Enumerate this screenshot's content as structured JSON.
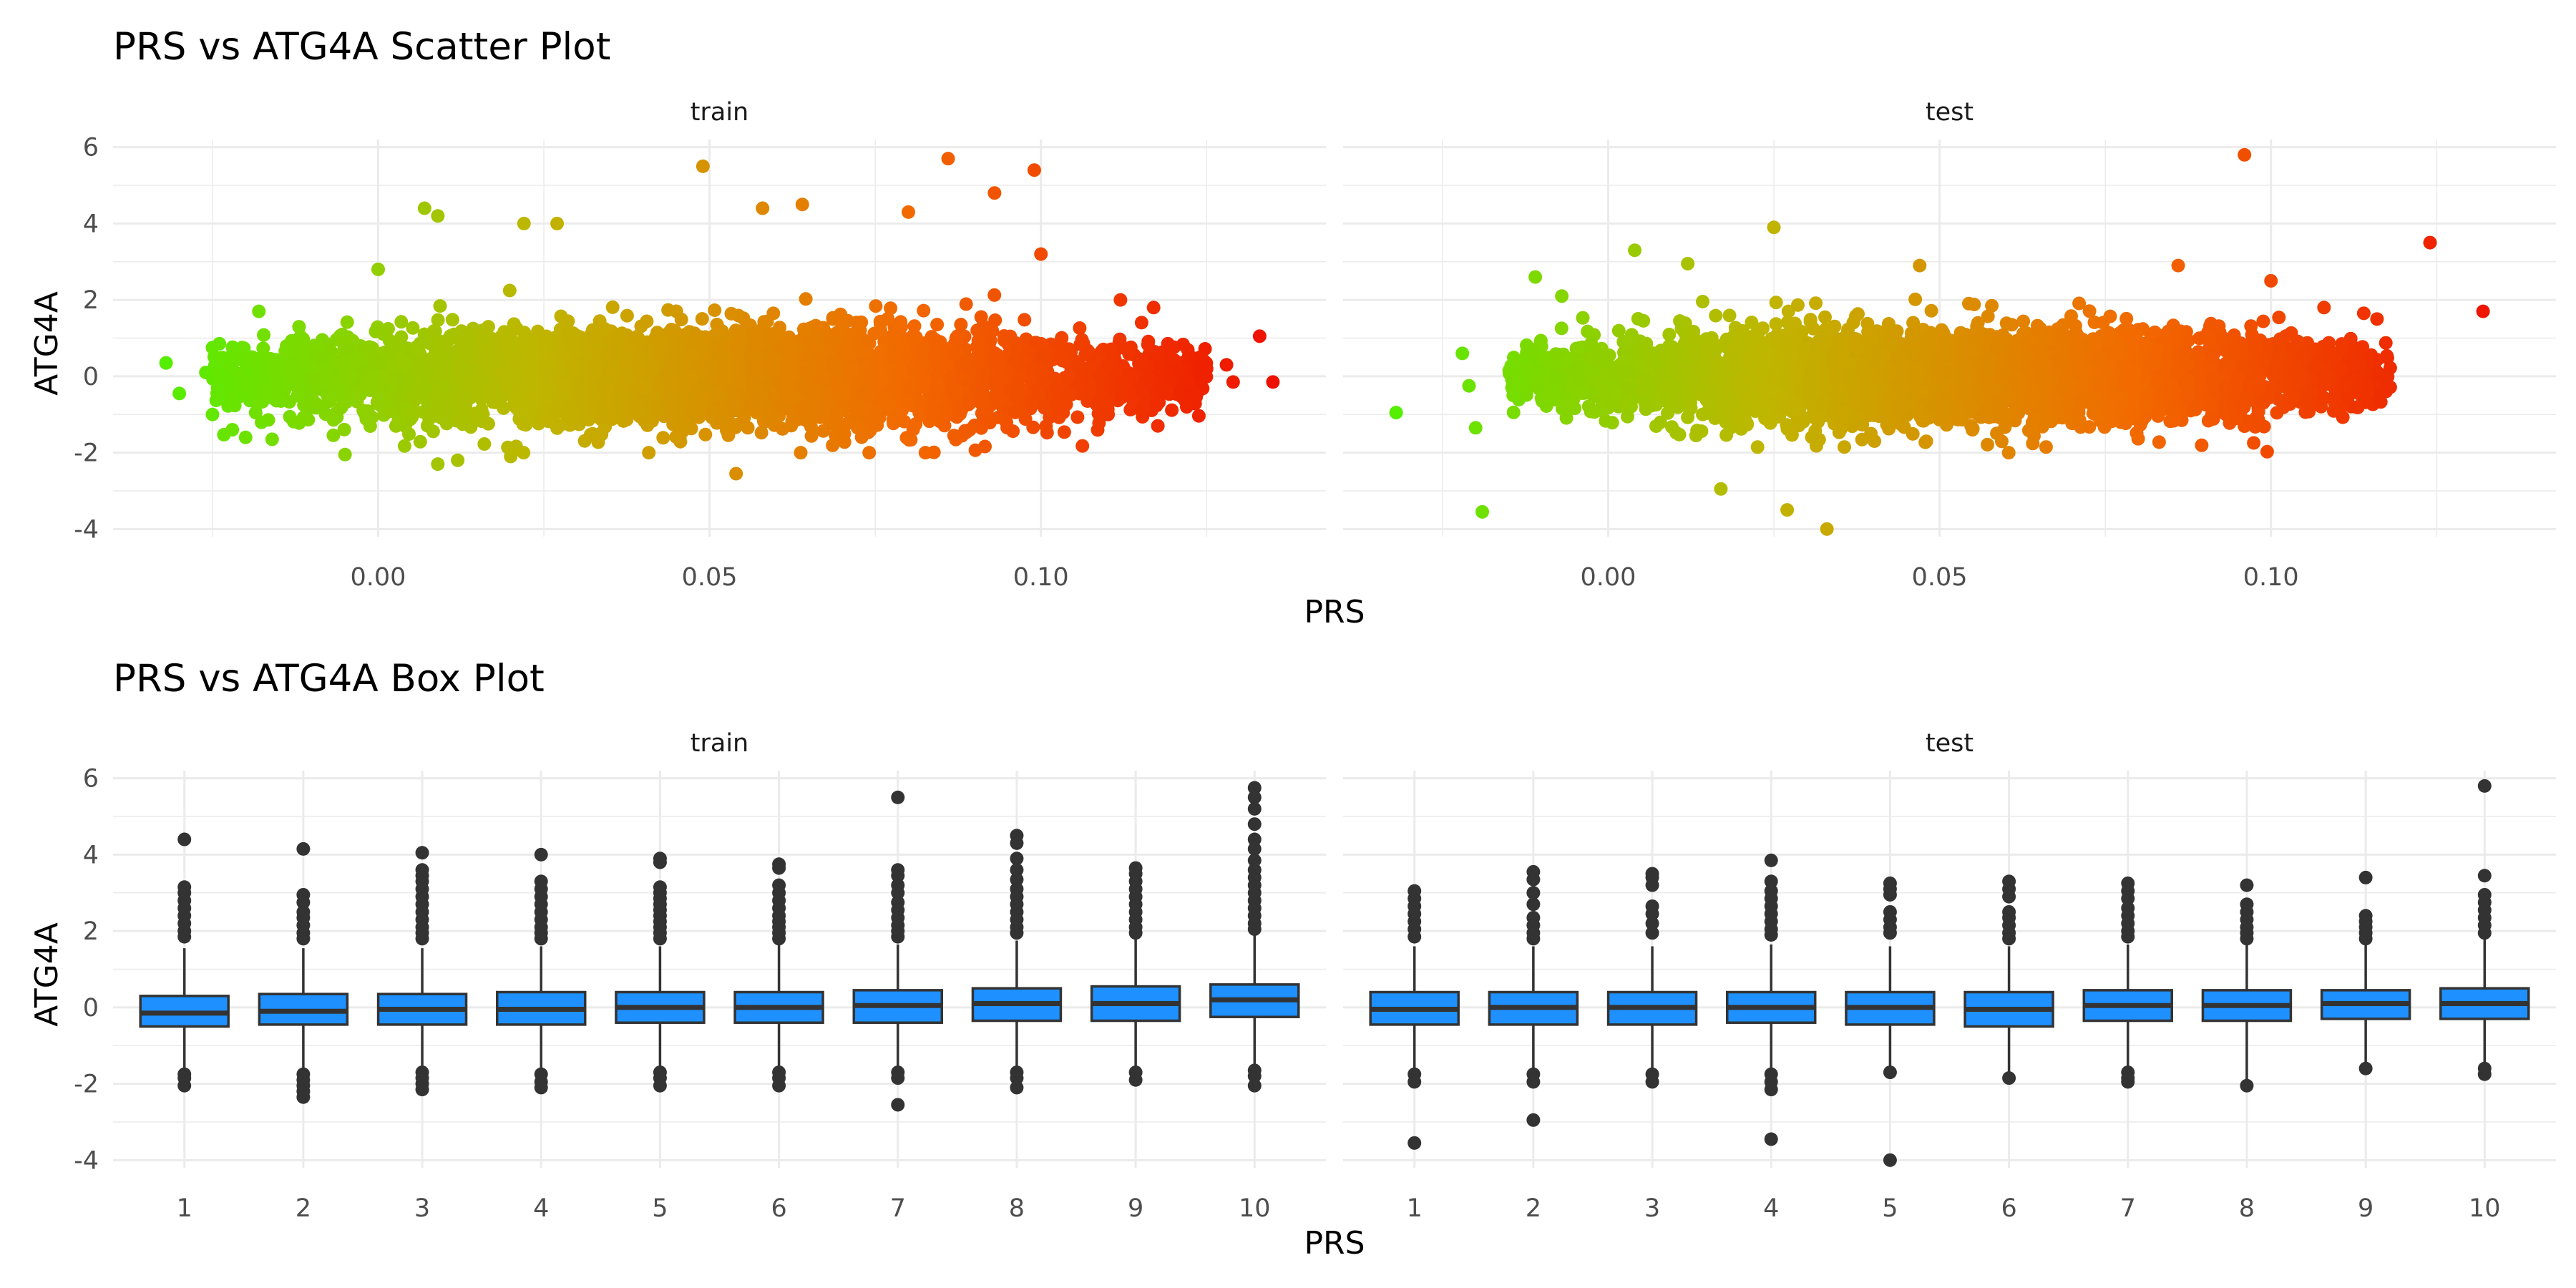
{
  "figure": {
    "scatter_title": "PRS vs ATG4A Scatter Plot",
    "box_title": "PRS vs ATG4A Box Plot",
    "scatter_xlabel": "PRS",
    "box_xlabel": "PRS",
    "ylabel": "ATG4A"
  },
  "chart_data": [
    {
      "type": "scatter",
      "title": "PRS vs ATG4A Scatter Plot",
      "xlabel": "PRS",
      "ylabel": "ATG4A",
      "xlim": [
        -0.04,
        0.143
      ],
      "ylim": [
        -4.2,
        6.2
      ],
      "x_ticks": [
        0.0,
        0.05,
        0.1
      ],
      "x_tick_labels": [
        "0.00",
        "0.05",
        "0.10"
      ],
      "y_ticks": [
        -4,
        -2,
        0,
        2,
        4,
        6
      ],
      "y_tick_labels": [
        "-4",
        "-2",
        "0",
        "2",
        "4",
        "6"
      ],
      "grid": true,
      "color_gradient": [
        "#55ee00",
        "#bfb600",
        "#f26a00",
        "#ee1100"
      ],
      "facets": [
        {
          "name": "train",
          "cloud": {
            "x_range": [
              -0.025,
              0.125
            ],
            "x_center": 0.05,
            "x_sd": 0.026,
            "y_center": 0.0,
            "y_sd": 0.62
          },
          "points": [
            {
              "x": -0.032,
              "y": 0.35
            },
            {
              "x": -0.03,
              "y": -0.45
            },
            {
              "x": -0.026,
              "y": 0.1
            },
            {
              "x": -0.025,
              "y": -1.0
            },
            {
              "x": -0.022,
              "y": -1.4
            },
            {
              "x": -0.02,
              "y": -1.6
            },
            {
              "x": -0.018,
              "y": 1.7
            },
            {
              "x": -0.016,
              "y": -1.65
            },
            {
              "x": -0.005,
              "y": -2.05
            },
            {
              "x": 0.0,
              "y": 2.8
            },
            {
              "x": 0.007,
              "y": 4.4
            },
            {
              "x": 0.009,
              "y": 4.2
            },
            {
              "x": 0.009,
              "y": -2.3
            },
            {
              "x": 0.012,
              "y": -2.2
            },
            {
              "x": 0.02,
              "y": -2.1
            },
            {
              "x": 0.022,
              "y": 4.0
            },
            {
              "x": 0.027,
              "y": 4.0
            },
            {
              "x": 0.049,
              "y": 5.5
            },
            {
              "x": 0.054,
              "y": -2.55
            },
            {
              "x": 0.058,
              "y": 4.4
            },
            {
              "x": 0.064,
              "y": 4.5
            },
            {
              "x": 0.086,
              "y": 5.7
            },
            {
              "x": 0.093,
              "y": 4.8
            },
            {
              "x": 0.099,
              "y": 5.4
            },
            {
              "x": 0.08,
              "y": 4.3
            },
            {
              "x": 0.1,
              "y": 3.2
            },
            {
              "x": 0.112,
              "y": 2.0
            },
            {
              "x": 0.117,
              "y": 1.8
            },
            {
              "x": 0.122,
              "y": -0.8
            },
            {
              "x": 0.125,
              "y": 0.2
            },
            {
              "x": 0.128,
              "y": 0.3
            },
            {
              "x": 0.129,
              "y": -0.15
            },
            {
              "x": 0.133,
              "y": 1.05
            },
            {
              "x": 0.135,
              "y": -0.15
            }
          ]
        },
        {
          "name": "test",
          "cloud": {
            "x_range": [
              -0.015,
              0.118
            ],
            "x_center": 0.05,
            "x_sd": 0.025,
            "y_center": 0.0,
            "y_sd": 0.6
          },
          "points": [
            {
              "x": -0.032,
              "y": -0.95
            },
            {
              "x": -0.022,
              "y": 0.6
            },
            {
              "x": -0.021,
              "y": -0.25
            },
            {
              "x": -0.02,
              "y": -1.35
            },
            {
              "x": -0.019,
              "y": -3.55
            },
            {
              "x": -0.011,
              "y": 2.6
            },
            {
              "x": -0.007,
              "y": 2.1
            },
            {
              "x": 0.004,
              "y": 3.3
            },
            {
              "x": 0.012,
              "y": 2.95
            },
            {
              "x": 0.017,
              "y": -2.95
            },
            {
              "x": 0.025,
              "y": 3.9
            },
            {
              "x": 0.027,
              "y": -3.5
            },
            {
              "x": 0.033,
              "y": -4.0
            },
            {
              "x": 0.047,
              "y": 2.9
            },
            {
              "x": 0.086,
              "y": 2.9
            },
            {
              "x": 0.096,
              "y": 5.8
            },
            {
              "x": 0.1,
              "y": 2.5
            },
            {
              "x": 0.108,
              "y": 1.8
            },
            {
              "x": 0.114,
              "y": 1.65
            },
            {
              "x": 0.116,
              "y": 1.5
            },
            {
              "x": 0.117,
              "y": 0.0
            },
            {
              "x": 0.124,
              "y": 3.5
            },
            {
              "x": 0.132,
              "y": 1.7
            }
          ]
        }
      ]
    },
    {
      "type": "box",
      "title": "PRS vs ATG4A Box Plot",
      "xlabel": "PRS",
      "ylabel": "ATG4A",
      "categories": [
        "1",
        "2",
        "3",
        "4",
        "5",
        "6",
        "7",
        "8",
        "9",
        "10"
      ],
      "ylim": [
        -4.2,
        6.2
      ],
      "y_ticks": [
        -4,
        -2,
        0,
        2,
        4,
        6
      ],
      "y_tick_labels": [
        "-4",
        "-2",
        "0",
        "2",
        "4",
        "6"
      ],
      "grid": true,
      "box_fill": "#1e90ff",
      "box_stroke": "#333333",
      "facets": [
        {
          "name": "train",
          "boxes": [
            {
              "q1": -0.5,
              "median": -0.15,
              "q3": 0.3,
              "lower": -1.6,
              "upper": 1.55,
              "outliers": [
                4.4,
                3.15,
                3.0,
                2.8,
                2.6,
                2.4,
                2.2,
                2.0,
                1.85,
                -1.75,
                -1.85,
                -2.05
              ]
            },
            {
              "q1": -0.45,
              "median": -0.1,
              "q3": 0.35,
              "lower": -1.6,
              "upper": 1.55,
              "outliers": [
                4.15,
                2.95,
                2.75,
                2.5,
                2.35,
                2.15,
                1.95,
                1.8,
                -1.75,
                -1.9,
                -2.05,
                -2.2,
                -2.35
              ]
            },
            {
              "q1": -0.45,
              "median": -0.05,
              "q3": 0.35,
              "lower": -1.55,
              "upper": 1.55,
              "outliers": [
                4.05,
                3.6,
                3.45,
                3.3,
                3.1,
                2.9,
                2.7,
                2.5,
                2.3,
                2.1,
                1.95,
                1.8,
                -1.7,
                -1.85,
                -2.0,
                -2.15
              ]
            },
            {
              "q1": -0.45,
              "median": -0.05,
              "q3": 0.4,
              "lower": -1.6,
              "upper": 1.6,
              "outliers": [
                4.0,
                3.3,
                3.1,
                2.9,
                2.7,
                2.5,
                2.3,
                2.1,
                1.95,
                1.8,
                -1.75,
                -1.95,
                -2.1
              ]
            },
            {
              "q1": -0.4,
              "median": 0.0,
              "q3": 0.4,
              "lower": -1.55,
              "upper": 1.6,
              "outliers": [
                3.9,
                3.8,
                3.15,
                3.0,
                2.85,
                2.7,
                2.55,
                2.4,
                2.25,
                2.1,
                1.95,
                1.8,
                -1.7,
                -1.85,
                -2.05
              ]
            },
            {
              "q1": -0.4,
              "median": 0.0,
              "q3": 0.4,
              "lower": -1.55,
              "upper": 1.65,
              "outliers": [
                3.75,
                3.65,
                3.2,
                3.0,
                2.8,
                2.6,
                2.4,
                2.25,
                2.1,
                1.95,
                1.8,
                -1.7,
                -1.85,
                -2.05
              ]
            },
            {
              "q1": -0.4,
              "median": 0.05,
              "q3": 0.45,
              "lower": -1.55,
              "upper": 1.65,
              "outliers": [
                5.5,
                3.6,
                3.45,
                3.2,
                3.0,
                2.75,
                2.55,
                2.35,
                2.15,
                2.0,
                1.85,
                -1.7,
                -1.85,
                -2.55
              ]
            },
            {
              "q1": -0.35,
              "median": 0.1,
              "q3": 0.5,
              "lower": -1.55,
              "upper": 1.75,
              "outliers": [
                4.5,
                4.3,
                3.9,
                3.6,
                3.35,
                3.1,
                2.9,
                2.7,
                2.5,
                2.3,
                2.1,
                1.95,
                -1.7,
                -1.85,
                -2.1
              ]
            },
            {
              "q1": -0.35,
              "median": 0.1,
              "q3": 0.55,
              "lower": -1.6,
              "upper": 1.85,
              "outliers": [
                3.65,
                3.5,
                3.3,
                3.1,
                2.9,
                2.7,
                2.5,
                2.3,
                2.1,
                1.95,
                -1.7,
                -1.9
              ]
            },
            {
              "q1": -0.25,
              "median": 0.2,
              "q3": 0.6,
              "lower": -1.55,
              "upper": 1.95,
              "outliers": [
                5.75,
                5.5,
                5.2,
                4.8,
                4.4,
                4.15,
                3.85,
                3.6,
                3.4,
                3.2,
                3.0,
                2.8,
                2.6,
                2.4,
                2.2,
                2.05,
                -1.65,
                -1.8,
                -2.05
              ]
            }
          ]
        },
        {
          "name": "test",
          "boxes": [
            {
              "q1": -0.45,
              "median": -0.05,
              "q3": 0.4,
              "lower": -1.6,
              "upper": 1.6,
              "outliers": [
                3.05,
                2.85,
                2.65,
                2.45,
                2.25,
                2.05,
                1.85,
                -1.75,
                -1.95,
                -3.55
              ]
            },
            {
              "q1": -0.45,
              "median": 0.0,
              "q3": 0.4,
              "lower": -1.6,
              "upper": 1.6,
              "outliers": [
                3.55,
                3.35,
                3.0,
                2.7,
                2.35,
                2.15,
                1.95,
                1.8,
                -1.75,
                -1.95,
                -2.95
              ]
            },
            {
              "q1": -0.45,
              "median": 0.0,
              "q3": 0.4,
              "lower": -1.6,
              "upper": 1.6,
              "outliers": [
                3.5,
                3.4,
                3.2,
                2.65,
                2.45,
                2.2,
                1.95,
                -1.75,
                -1.95
              ]
            },
            {
              "q1": -0.4,
              "median": 0.0,
              "q3": 0.4,
              "lower": -1.6,
              "upper": 1.65,
              "outliers": [
                3.85,
                3.3,
                3.05,
                2.85,
                2.65,
                2.45,
                2.25,
                2.05,
                1.9,
                -1.75,
                -1.95,
                -2.15,
                -3.45
              ]
            },
            {
              "q1": -0.45,
              "median": 0.0,
              "q3": 0.4,
              "lower": -1.6,
              "upper": 1.6,
              "outliers": [
                3.25,
                3.1,
                2.95,
                2.5,
                2.3,
                2.1,
                1.95,
                -1.7,
                -4.0
              ]
            },
            {
              "q1": -0.5,
              "median": -0.05,
              "q3": 0.4,
              "lower": -1.7,
              "upper": 1.6,
              "outliers": [
                3.3,
                3.1,
                2.9,
                2.5,
                2.35,
                2.15,
                1.95,
                1.8,
                -1.85
              ]
            },
            {
              "q1": -0.35,
              "median": 0.05,
              "q3": 0.45,
              "lower": -1.55,
              "upper": 1.65,
              "outliers": [
                3.25,
                3.05,
                2.85,
                2.6,
                2.4,
                2.2,
                2.0,
                1.85,
                -1.7,
                -1.85,
                -1.95
              ]
            },
            {
              "q1": -0.35,
              "median": 0.05,
              "q3": 0.45,
              "lower": -1.9,
              "upper": 1.65,
              "outliers": [
                3.2,
                2.7,
                2.5,
                2.3,
                2.1,
                1.95,
                1.8,
                -2.05
              ]
            },
            {
              "q1": -0.3,
              "median": 0.1,
              "q3": 0.45,
              "lower": -1.5,
              "upper": 1.7,
              "outliers": [
                3.4,
                2.4,
                2.25,
                2.1,
                1.95,
                1.8,
                -1.6
              ]
            },
            {
              "q1": -0.3,
              "median": 0.1,
              "q3": 0.5,
              "lower": -1.55,
              "upper": 1.8,
              "outliers": [
                5.8,
                3.45,
                2.95,
                2.75,
                2.55,
                2.35,
                2.15,
                1.95,
                -1.6,
                -1.75
              ]
            }
          ]
        }
      ]
    }
  ]
}
